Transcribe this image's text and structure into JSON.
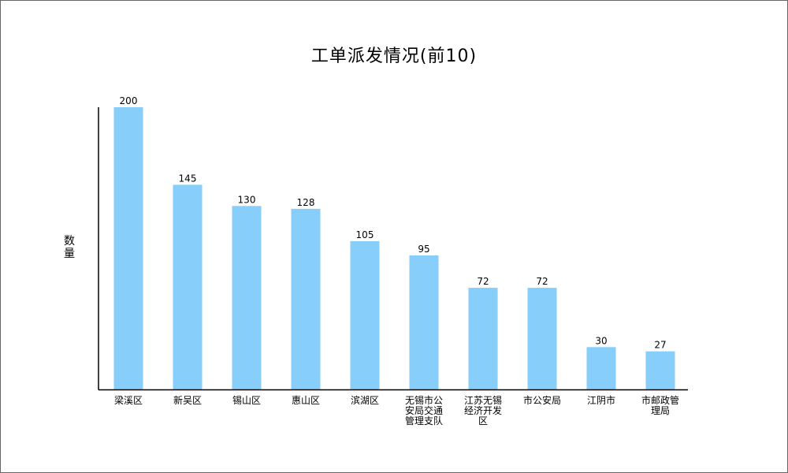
{
  "chart_data": {
    "type": "bar",
    "title": "工单派发情况(前10)",
    "xlabel": "",
    "ylabel": "数量",
    "categories": [
      "梁溪区",
      "新吴区",
      "锡山区",
      "惠山区",
      "滨湖区",
      "无锡市公安局交通管理支队",
      "江苏无锡经济开发区",
      "市公安局",
      "江阴市",
      "市邮政管理局"
    ],
    "category_lines": [
      [
        "梁溪区"
      ],
      [
        "新吴区"
      ],
      [
        "锡山区"
      ],
      [
        "惠山区"
      ],
      [
        "滨湖区"
      ],
      [
        "无锡市公",
        "安局交通",
        "管理支队"
      ],
      [
        "江苏无锡",
        "经济开发",
        "区"
      ],
      [
        "市公安局"
      ],
      [
        "江阴市"
      ],
      [
        "市邮政管",
        "理局"
      ]
    ],
    "values": [
      200,
      145,
      130,
      128,
      105,
      95,
      72,
      72,
      30,
      27
    ],
    "ylim": [
      0,
      200
    ],
    "grid": false,
    "legend": "none",
    "bar_color": "#87CEFA",
    "axis_color": "#000000"
  }
}
